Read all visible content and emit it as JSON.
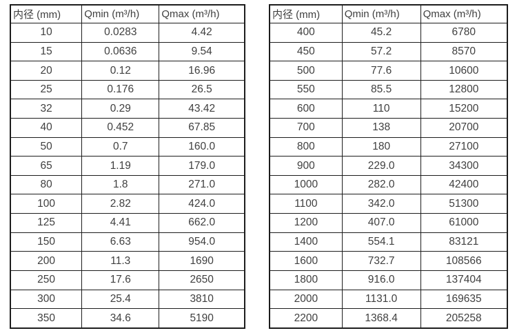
{
  "style": {
    "border_color": "#1c1c1c",
    "text_color": "#3f3f3f",
    "background_color": "#ffffff"
  },
  "chart_data": [
    {
      "type": "table",
      "name": "flow-rate-table-small-diameters",
      "columns": [
        "内径 (mm)",
        "Qmin (m³/h)",
        "Qmax (m³/h)"
      ],
      "rows": [
        [
          "10",
          "0.0283",
          "4.42"
        ],
        [
          "15",
          "0.0636",
          "9.54"
        ],
        [
          "20",
          "0.12",
          "16.96"
        ],
        [
          "25",
          "0.176",
          "26.5"
        ],
        [
          "32",
          "0.29",
          "43.42"
        ],
        [
          "40",
          "0.452",
          "67.85"
        ],
        [
          "50",
          "0.7",
          "160.0"
        ],
        [
          "65",
          "1.19",
          "179.0"
        ],
        [
          "80",
          "1.8",
          "271.0"
        ],
        [
          "100",
          "2.82",
          "424.0"
        ],
        [
          "125",
          "4.41",
          "662.0"
        ],
        [
          "150",
          "6.63",
          "954.0"
        ],
        [
          "200",
          "11.3",
          "1690"
        ],
        [
          "250",
          "17.6",
          "2650"
        ],
        [
          "300",
          "25.4",
          "3810"
        ],
        [
          "350",
          "34.6",
          "5190"
        ]
      ]
    },
    {
      "type": "table",
      "name": "flow-rate-table-large-diameters",
      "columns": [
        "内径 (mm)",
        "Qmin (m³/h)",
        "Qmax (m³/h)"
      ],
      "rows": [
        [
          "400",
          "45.2",
          "6780"
        ],
        [
          "450",
          "57.2",
          "8570"
        ],
        [
          "500",
          "77.6",
          "10600"
        ],
        [
          "550",
          "85.5",
          "12800"
        ],
        [
          "600",
          "110",
          "15200"
        ],
        [
          "700",
          "138",
          "20700"
        ],
        [
          "800",
          "180",
          "27100"
        ],
        [
          "900",
          "229.0",
          "34300"
        ],
        [
          "1000",
          "282.0",
          "42400"
        ],
        [
          "1100",
          "342.0",
          "51300"
        ],
        [
          "1200",
          "407.0",
          "61000"
        ],
        [
          "1400",
          "554.1",
          "83121"
        ],
        [
          "1600",
          "732.7",
          "108566"
        ],
        [
          "1800",
          "916.0",
          "137404"
        ],
        [
          "2000",
          "1131.0",
          "169635"
        ],
        [
          "2200",
          "1368.4",
          "205258"
        ]
      ]
    }
  ]
}
